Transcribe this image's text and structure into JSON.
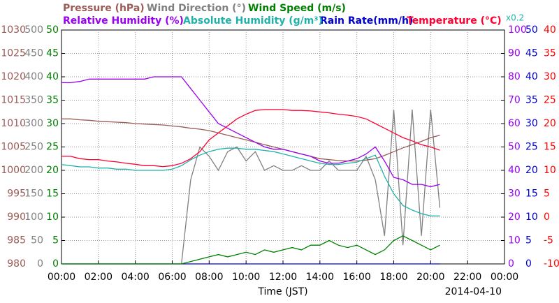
{
  "chart_data": {
    "type": "line",
    "xlabel": "Time (JST)",
    "date": "2014-04-10",
    "xlim": [
      0,
      24
    ],
    "xticks": [
      {
        "value": 0,
        "label": "00:00"
      },
      {
        "value": 2,
        "label": "02:00"
      },
      {
        "value": 4,
        "label": "04:00"
      },
      {
        "value": 6,
        "label": "06:00"
      },
      {
        "value": 8,
        "label": "08:00"
      },
      {
        "value": 10,
        "label": "10:00"
      },
      {
        "value": 12,
        "label": "12:00"
      },
      {
        "value": 14,
        "label": "14:00"
      },
      {
        "value": 16,
        "label": "16:00"
      },
      {
        "value": 18,
        "label": "18:00"
      },
      {
        "value": 20,
        "label": "20:00"
      },
      {
        "value": 22,
        "label": "22:00"
      },
      {
        "value": 24,
        "label": "00:00"
      }
    ],
    "grid": true,
    "axes": [
      {
        "side": "left",
        "color": "#9a5a55",
        "lim": [
          980,
          1030
        ],
        "ticks": [
          980,
          985,
          990,
          995,
          1000,
          1005,
          1010,
          1015,
          1020,
          1025,
          1030
        ]
      },
      {
        "side": "left",
        "color": "#808080",
        "lim": [
          0,
          500
        ],
        "ticks": [
          0,
          50,
          100,
          150,
          200,
          250,
          300,
          350,
          400,
          450,
          500
        ]
      },
      {
        "side": "left",
        "color": "#008000",
        "lim": [
          0,
          50
        ],
        "ticks": [
          0,
          5,
          10,
          15,
          20,
          25,
          30,
          35,
          40,
          45,
          50
        ]
      },
      {
        "side": "right",
        "color": "#9900ee",
        "lim": [
          0,
          100
        ],
        "ticks": [
          0,
          10,
          20,
          30,
          40,
          50,
          60,
          70,
          80,
          90,
          100
        ]
      },
      {
        "side": "right",
        "color": "#0000cc",
        "lim": [
          0,
          50
        ],
        "ticks": [
          0,
          5,
          10,
          15,
          20,
          25,
          30,
          35,
          40,
          45,
          50
        ]
      },
      {
        "side": "right",
        "color": "#ff0000",
        "lim": [
          -10,
          40
        ],
        "ticks": [
          -10,
          -5,
          0,
          5,
          10,
          15,
          20,
          25,
          30,
          35,
          40
        ]
      }
    ],
    "x": [
      0,
      0.5,
      1,
      1.5,
      2,
      2.5,
      3,
      3.5,
      4,
      4.5,
      5,
      5.5,
      6,
      6.5,
      7,
      7.5,
      8,
      8.5,
      9,
      9.5,
      10,
      10.5,
      11,
      11.5,
      12,
      12.5,
      13,
      13.5,
      14,
      14.5,
      15,
      15.5,
      16,
      16.5,
      17,
      17.5,
      18,
      18.5,
      19,
      19.5,
      20,
      20.5
    ],
    "series": [
      {
        "name": "Rain Rate(mm/h)",
        "color": "#0000cc",
        "axis": 4,
        "values": [
          0,
          0,
          0,
          0,
          0,
          0,
          0,
          0,
          0,
          0,
          0,
          0,
          0,
          0,
          0,
          0,
          0,
          0,
          0,
          0,
          0,
          0,
          0,
          0,
          0,
          0,
          0,
          0,
          0,
          0,
          0,
          0,
          0,
          0,
          0,
          0,
          0,
          0,
          0,
          0,
          0,
          0
        ]
      },
      {
        "name": "Wind Direction (°)",
        "color": "#808080",
        "axis": 1,
        "values": [
          0,
          0,
          0,
          0,
          0,
          0,
          0,
          0,
          0,
          0,
          0,
          0,
          0,
          0,
          180,
          250,
          230,
          200,
          240,
          250,
          220,
          240,
          200,
          210,
          200,
          200,
          210,
          200,
          200,
          220,
          200,
          200,
          200,
          230,
          180,
          60,
          330,
          40,
          330,
          60,
          330,
          120
        ]
      },
      {
        "name": "Wind Speed (m/s)",
        "color": "#008000",
        "axis": 2,
        "values": [
          0,
          0,
          0,
          0,
          0,
          0,
          0,
          0,
          0,
          0,
          0,
          0,
          0,
          0,
          0.5,
          1,
          1.5,
          2,
          1.5,
          2,
          2.5,
          2,
          3,
          2.5,
          3,
          3.5,
          3,
          4,
          4,
          5,
          4,
          3.5,
          4,
          3,
          2,
          3,
          5,
          6,
          5,
          4,
          3,
          4
        ]
      },
      {
        "name": "Pressure (hPa)",
        "color": "#9a5a55",
        "axis": 0,
        "values": [
          1011,
          1011,
          1010.8,
          1010.7,
          1010.5,
          1010.4,
          1010.3,
          1010.2,
          1010,
          1009.9,
          1009.8,
          1009.7,
          1009.5,
          1009.3,
          1009,
          1008.8,
          1008.5,
          1008,
          1007.5,
          1007,
          1006.5,
          1006,
          1005.5,
          1005,
          1004.5,
          1004,
          1003.5,
          1003,
          1002.5,
          1002.3,
          1002.1,
          1002,
          1002,
          1002.2,
          1002.5,
          1003.2,
          1004,
          1004.8,
          1005.5,
          1006.2,
          1007,
          1007.5
        ]
      },
      {
        "name": "Relative Humidity (%)",
        "color": "#9900ee",
        "axis": 3,
        "values": [
          77.5,
          77.5,
          78,
          79,
          79,
          79,
          79,
          79,
          79,
          79,
          80,
          80,
          80,
          80,
          75,
          70,
          65,
          60,
          58,
          56,
          54,
          52,
          50,
          49,
          49,
          48,
          47,
          46,
          44,
          43,
          43,
          44,
          45,
          47,
          50,
          44,
          37,
          36,
          34,
          34,
          33,
          34
        ]
      },
      {
        "name": "Absolute Humidity (g/m³)",
        "color": "#20b2aa",
        "ylim": [
          0,
          20
        ],
        "scale_label": "x0.2",
        "values": [
          8.5,
          8.4,
          8.3,
          8.3,
          8.2,
          8.2,
          8.1,
          8.1,
          8.0,
          8.0,
          8.0,
          8.0,
          8.1,
          8.4,
          8.9,
          9.3,
          9.6,
          9.8,
          9.9,
          9.9,
          9.8,
          9.8,
          9.7,
          9.6,
          9.4,
          9.2,
          9.0,
          8.8,
          8.6,
          8.5,
          8.5,
          8.6,
          8.7,
          9.0,
          9.3,
          7.5,
          6.0,
          5.0,
          4.6,
          4.3,
          4.1,
          4.1
        ]
      },
      {
        "name": "Temperature (°C)",
        "color": "#ff0033",
        "axis": 5,
        "values": [
          13,
          13,
          12.5,
          12.3,
          12.3,
          12,
          11.8,
          11.5,
          11.3,
          11,
          11,
          10.8,
          11,
          11.5,
          12.5,
          14,
          16.5,
          18,
          19.5,
          21,
          22,
          22.8,
          23,
          23,
          23,
          22.8,
          22.8,
          22.7,
          22.5,
          22.3,
          22,
          21.8,
          21.5,
          21,
          20,
          19,
          18,
          17,
          16.3,
          15.5,
          15,
          14.3
        ]
      }
    ]
  }
}
